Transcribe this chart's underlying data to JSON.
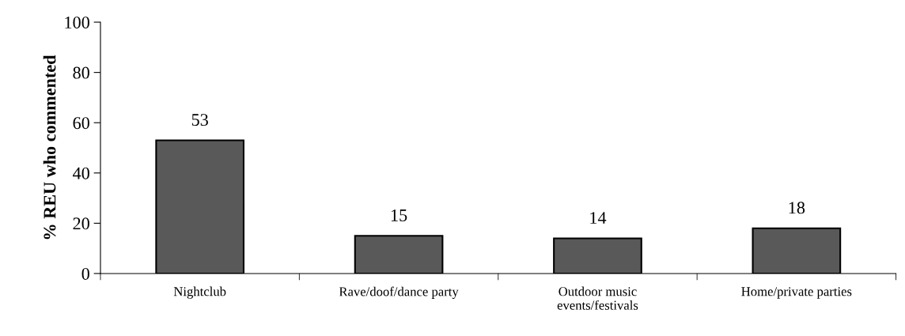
{
  "chart_data": {
    "type": "bar",
    "ylabel": "% REU who commented",
    "categories": [
      "Nightclub",
      "Rave/doof/dance party",
      "Outdoor music\nevents/festivals",
      "Home/private parties"
    ],
    "values": [
      53,
      15,
      14,
      18
    ],
    "color": "#595959",
    "ylim": [
      0,
      100
    ],
    "yticks": [
      0,
      20,
      40,
      60,
      80,
      100
    ],
    "data_labels": true,
    "grid": false,
    "legend": false
  }
}
